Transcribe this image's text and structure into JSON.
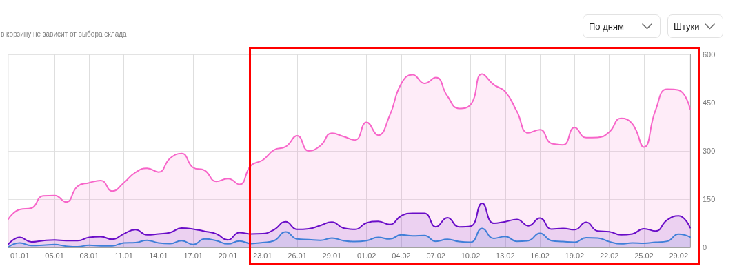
{
  "chart_data": {
    "type": "area",
    "subtitle": "в корзину не зависит от выбора склада",
    "annotations": [
      "По дням",
      "Штуки"
    ],
    "categories": [
      null,
      "01.01",
      null,
      null,
      "05.01",
      null,
      null,
      "08.01",
      null,
      null,
      "11.01",
      null,
      null,
      "14.01",
      null,
      null,
      "17.01",
      null,
      null,
      "20.01",
      null,
      null,
      "23.01",
      null,
      null,
      "26.01",
      null,
      null,
      "29.01",
      null,
      null,
      "01.02",
      null,
      null,
      "04.02",
      null,
      null,
      "07.02",
      null,
      null,
      "10.02",
      null,
      null,
      "13.02",
      null,
      null,
      "16.02",
      null,
      null,
      "19.02",
      null,
      null,
      "22.02",
      null,
      null,
      "25.02",
      null,
      null,
      "29.02",
      null
    ],
    "series": [
      {
        "color": "#f765c9",
        "values": [
          88,
          118,
          122,
          160,
          161,
          141,
          190,
          201,
          208,
          175,
          201,
          233,
          246,
          234,
          277,
          292,
          248,
          239,
          205,
          214,
          196,
          255,
          271,
          303,
          313,
          347,
          300,
          316,
          355,
          345,
          334,
          389,
          349,
          410,
          509,
          537,
          510,
          528,
          470,
          432,
          444,
          539,
          506,
          484,
          423,
          356,
          366,
          323,
          319,
          373,
          341,
          342,
          359,
          401,
          384,
          312,
          426,
          492,
          489,
          430
        ]
      },
      {
        "color": "#6a0dc8",
        "values": [
          10,
          31,
          17,
          21,
          23,
          21,
          21,
          31,
          33,
          25,
          42,
          55,
          39,
          42,
          46,
          60,
          57,
          50,
          42,
          23,
          46,
          42,
          43,
          55,
          80,
          56,
          58,
          68,
          79,
          60,
          56,
          76,
          81,
          71,
          98,
          106,
          106,
          64,
          92,
          64,
          66,
          137,
          75,
          80,
          87,
          67,
          91,
          57,
          59,
          55,
          78,
          51,
          49,
          39,
          42,
          58,
          51,
          85,
          98,
          61
        ]
      },
      {
        "color": "#3f7fd8",
        "values": [
          1,
          14,
          6,
          7,
          9,
          4,
          2,
          7,
          5,
          5,
          14,
          15,
          22,
          14,
          12,
          21,
          9,
          26,
          21,
          11,
          20,
          12,
          15,
          21,
          48,
          26,
          24,
          22,
          29,
          21,
          18,
          21,
          31,
          26,
          39,
          36,
          37,
          19,
          25,
          18,
          16,
          59,
          28,
          34,
          19,
          21,
          44,
          21,
          18,
          16,
          30,
          29,
          18,
          11,
          14,
          13,
          16,
          19,
          41,
          32
        ]
      }
    ],
    "ylim": [
      0,
      600
    ],
    "yticks": [
      0,
      150,
      300,
      450,
      600
    ],
    "grid": true
  }
}
